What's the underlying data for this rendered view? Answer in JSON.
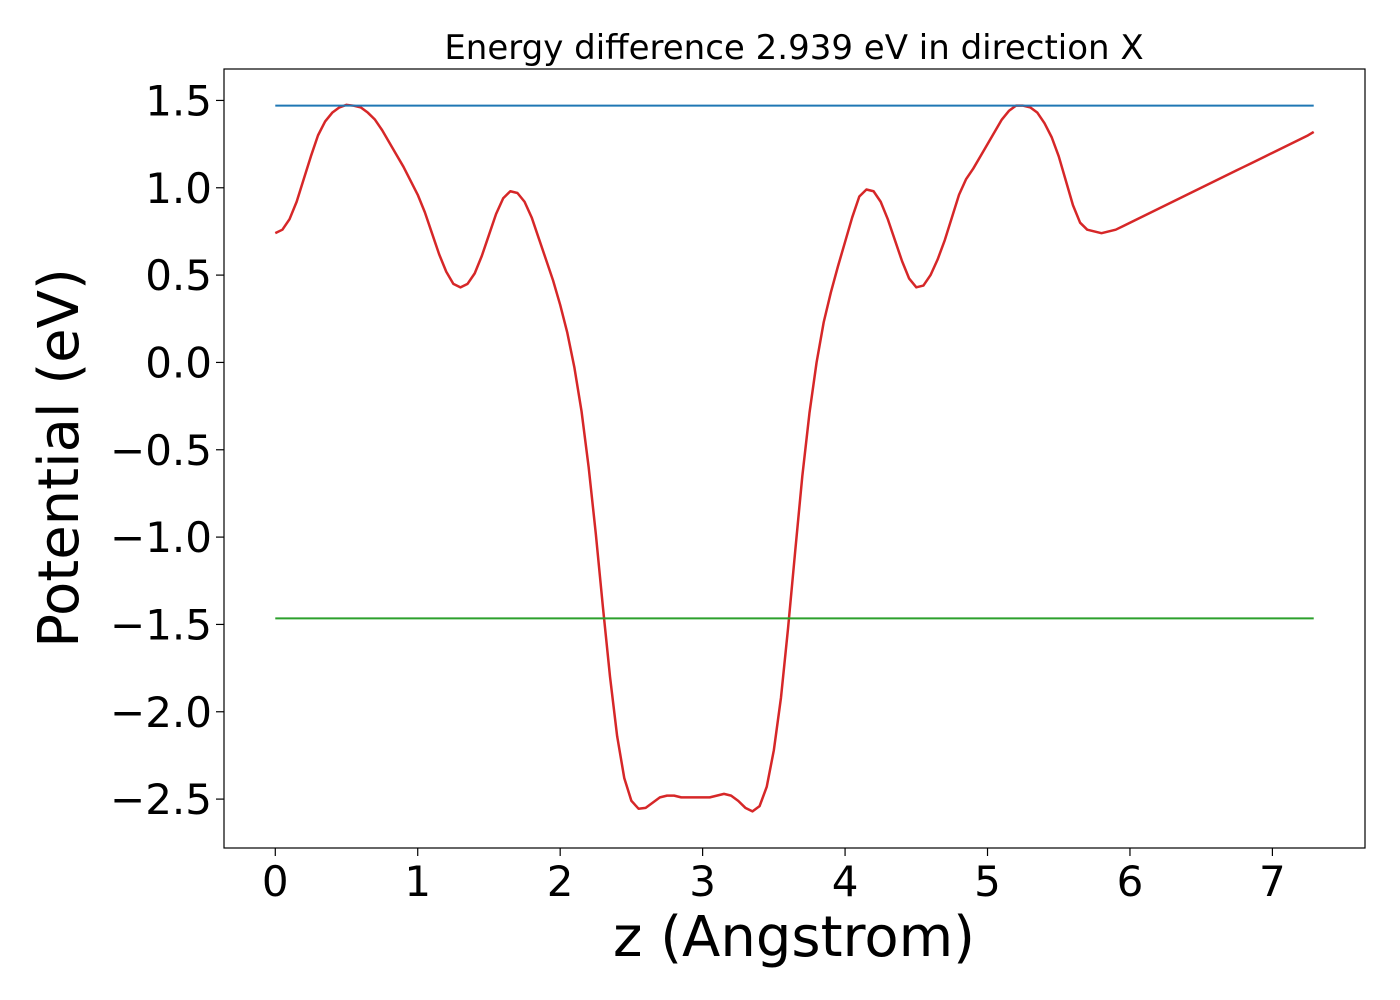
{
  "chart_data": {
    "type": "line",
    "title": "Energy difference 2.939 eV in direction X",
    "xlabel": "z (Angstrom)",
    "ylabel": "Potential (eV)",
    "xlim": [
      -0.36,
      7.65
    ],
    "ylim": [
      -2.78,
      1.68
    ],
    "xticks": [
      0,
      1,
      2,
      3,
      4,
      5,
      6,
      7
    ],
    "xtick_labels": [
      "0",
      "1",
      "2",
      "3",
      "4",
      "5",
      "6",
      "7"
    ],
    "yticks": [
      1.5,
      1.0,
      0.5,
      0.0,
      -0.5,
      -1.0,
      -1.5,
      -2.0,
      -2.5
    ],
    "ytick_labels": [
      "1.5",
      "1.0",
      "0.5",
      "0.0",
      "−0.5",
      "−1.0",
      "−1.5",
      "−2.0",
      "−2.5"
    ],
    "grid": false,
    "series": [
      {
        "color": "#d62728",
        "x": [
          0.0,
          0.05,
          0.1,
          0.15,
          0.2,
          0.25,
          0.3,
          0.35,
          0.4,
          0.45,
          0.5,
          0.55,
          0.6,
          0.65,
          0.7,
          0.75,
          0.8,
          0.85,
          0.9,
          0.95,
          1.0,
          1.05,
          1.1,
          1.15,
          1.2,
          1.25,
          1.3,
          1.35,
          1.4,
          1.45,
          1.5,
          1.55,
          1.6,
          1.65,
          1.7,
          1.75,
          1.8,
          1.85,
          1.9,
          1.95,
          2.0,
          2.05,
          2.1,
          2.15,
          2.2,
          2.25,
          2.3,
          2.35,
          2.4,
          2.45,
          2.5,
          2.55,
          2.6,
          2.65,
          2.7,
          2.75,
          2.8,
          2.85,
          2.9,
          2.95,
          3.0,
          3.05,
          3.1,
          3.15,
          3.2,
          3.25,
          3.3,
          3.35,
          3.4,
          3.45,
          3.5,
          3.55,
          3.6,
          3.65,
          3.7,
          3.75,
          3.8,
          3.85,
          3.9,
          3.95,
          4.0,
          4.05,
          4.1,
          4.15,
          4.2,
          4.25,
          4.3,
          4.35,
          4.4,
          4.45,
          4.5,
          4.55,
          4.6,
          4.65,
          4.7,
          4.75,
          4.8,
          4.85,
          4.9,
          4.95,
          5.0,
          5.05,
          5.1,
          5.15,
          5.2,
          5.25,
          5.3,
          5.35,
          5.4,
          5.45,
          5.5,
          5.55,
          5.6,
          5.65,
          5.7,
          5.75,
          5.8,
          5.85,
          5.9,
          5.95,
          6.0,
          6.05,
          6.1,
          6.15,
          6.2,
          6.25,
          6.3,
          6.35,
          6.4,
          6.45,
          6.5,
          6.55,
          6.6,
          6.65,
          6.7,
          6.75,
          6.8,
          6.85,
          6.9,
          6.95,
          7.0,
          7.05,
          7.1,
          7.15,
          7.2,
          7.25,
          7.29
        ],
        "y": [
          0.74,
          0.76,
          0.82,
          0.92,
          1.05,
          1.18,
          1.3,
          1.38,
          1.43,
          1.46,
          1.475,
          1.47,
          1.46,
          1.43,
          1.39,
          1.33,
          1.26,
          1.19,
          1.12,
          1.04,
          0.96,
          0.86,
          0.74,
          0.62,
          0.52,
          0.45,
          0.43,
          0.45,
          0.51,
          0.61,
          0.73,
          0.85,
          0.94,
          0.98,
          0.97,
          0.92,
          0.83,
          0.71,
          0.59,
          0.47,
          0.33,
          0.17,
          -0.03,
          -0.28,
          -0.6,
          -0.98,
          -1.4,
          -1.8,
          -2.14,
          -2.38,
          -2.51,
          -2.555,
          -2.55,
          -2.52,
          -2.49,
          -2.48,
          -2.48,
          -2.49,
          -2.49,
          -2.49,
          -2.49,
          -2.49,
          -2.48,
          -2.47,
          -2.48,
          -2.51,
          -2.55,
          -2.57,
          -2.54,
          -2.43,
          -2.22,
          -1.92,
          -1.52,
          -1.08,
          -0.65,
          -0.29,
          0.0,
          0.23,
          0.4,
          0.55,
          0.69,
          0.83,
          0.95,
          0.99,
          0.98,
          0.92,
          0.82,
          0.7,
          0.58,
          0.48,
          0.43,
          0.44,
          0.5,
          0.59,
          0.7,
          0.83,
          0.96,
          1.05,
          1.11,
          1.18,
          1.25,
          1.32,
          1.39,
          1.44,
          1.47,
          1.47,
          1.46,
          1.43,
          1.37,
          1.29,
          1.18,
          1.04,
          0.9,
          0.8,
          0.76,
          0.75,
          0.74,
          0.75,
          0.76,
          0.78,
          0.8,
          0.82,
          0.84,
          0.86,
          0.88,
          0.9,
          0.92,
          0.94,
          0.96,
          0.98,
          1.0,
          1.02,
          1.04,
          1.06,
          1.08,
          1.1,
          1.12,
          1.14,
          1.16,
          1.18,
          1.2,
          1.22,
          1.24,
          1.26,
          1.28,
          1.3,
          1.32
        ]
      },
      {
        "color": "#1f77b4",
        "x": [
          0.0,
          7.29
        ],
        "y": [
          1.47,
          1.47
        ]
      },
      {
        "color": "#2ca02c",
        "x": [
          0.0,
          7.29
        ],
        "y": [
          -1.465,
          -1.465
        ]
      }
    ]
  }
}
